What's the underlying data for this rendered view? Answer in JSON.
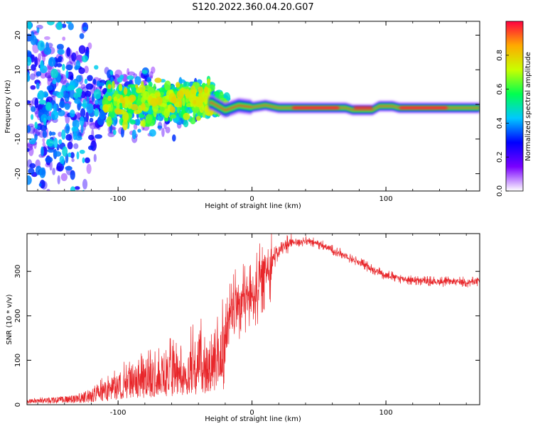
{
  "figure": {
    "title": "S120.2022.360.04.20.G07"
  },
  "chart_data": [
    {
      "type": "heatmap",
      "xlabel": "Height of straight line (km)",
      "ylabel": "Frequency (Hz)",
      "xlim": [
        -168,
        170
      ],
      "ylim": [
        -25,
        24
      ],
      "x_ticks": [
        -100,
        0,
        100
      ],
      "y_ticks": [
        -20,
        -10,
        0,
        10,
        20
      ],
      "colorbar": {
        "label": "Normalized spectral amplitude",
        "ticks": [
          "0.0",
          "0.2",
          "0.4",
          "0.6",
          "0.8"
        ],
        "range": [
          0,
          1
        ],
        "colormap": "rainbow",
        "colors": [
          "#ffffff",
          "#7a00ff",
          "#0000ff",
          "#00c8ff",
          "#00ff50",
          "#c8ff00",
          "#ffaa00",
          "#ff0040"
        ]
      },
      "ridge": [
        {
          "x": -30,
          "f": 0.5
        },
        {
          "x": -20,
          "f": -1.7
        },
        {
          "x": -10,
          "f": -0.3
        },
        {
          "x": 0,
          "f": -0.8
        },
        {
          "x": 10,
          "f": -0.2
        },
        {
          "x": 20,
          "f": -1.0
        },
        {
          "x": 40,
          "f": -1.0
        },
        {
          "x": 60,
          "f": -1.0
        },
        {
          "x": 70,
          "f": -1.0
        },
        {
          "x": 75,
          "f": -1.6
        },
        {
          "x": 90,
          "f": -1.6
        },
        {
          "x": 95,
          "f": -0.5
        },
        {
          "x": 105,
          "f": -0.5
        },
        {
          "x": 110,
          "f": -1.0
        },
        {
          "x": 170,
          "f": -1.0
        }
      ],
      "grid": false,
      "legend": "none"
    },
    {
      "type": "line",
      "xlabel": "Height of straight line (km)",
      "ylabel": "SNR (10 * v/v)",
      "xlim": [
        -168,
        170
      ],
      "ylim": [
        0,
        385
      ],
      "x_ticks": [
        -100,
        0,
        100
      ],
      "y_ticks": [
        0,
        100,
        200,
        300
      ],
      "series": [
        {
          "color": "#e8262a",
          "x": [
            -168,
            -150,
            -130,
            -120,
            -110,
            -100,
            -90,
            -80,
            -70,
            -60,
            -50,
            -40,
            -30,
            -20,
            -15,
            -10,
            -5,
            0,
            5,
            10,
            15,
            20,
            25,
            30,
            40,
            50,
            60,
            70,
            80,
            90,
            100,
            110,
            120,
            130,
            140,
            150,
            160,
            170
          ],
          "values": [
            10,
            14,
            20,
            28,
            40,
            55,
            70,
            80,
            88,
            95,
            105,
            120,
            130,
            160,
            200,
            230,
            240,
            245,
            270,
            300,
            325,
            345,
            360,
            365,
            368,
            362,
            348,
            335,
            320,
            305,
            292,
            285,
            280,
            278,
            277,
            277,
            276,
            278
          ]
        }
      ],
      "grid": false,
      "legend": "none"
    }
  ]
}
